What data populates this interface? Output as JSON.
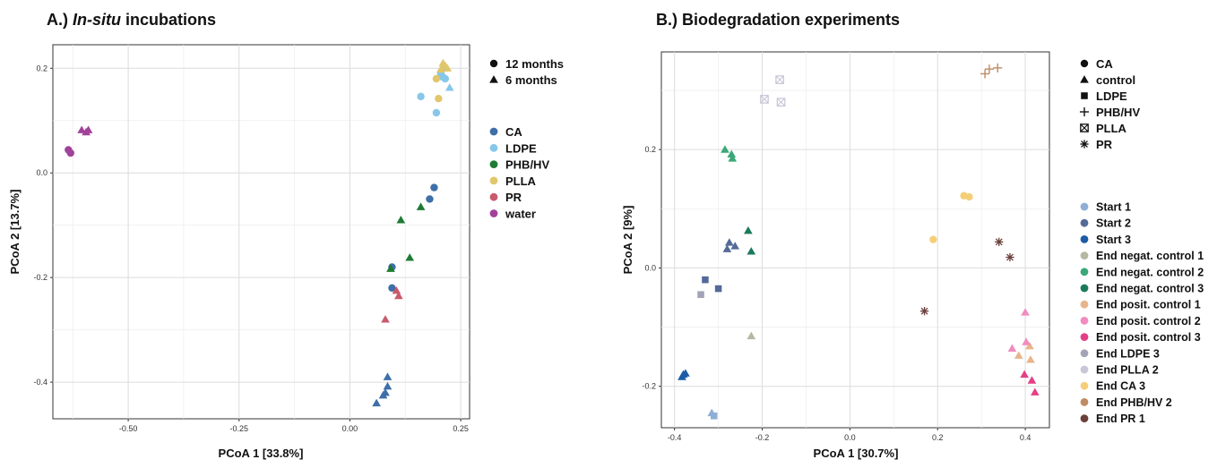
{
  "panelA": {
    "title_prefix": "A.) ",
    "title_italic": "In-situ",
    "title_suffix": " incubations",
    "xlabel": "PCoA 1   [33.8%]",
    "ylabel": "PCoA 2   [13.7%]",
    "shape_legend": [
      {
        "label": "12 months",
        "shape": "circle"
      },
      {
        "label": "6 months",
        "shape": "triangle"
      }
    ],
    "color_legend": [
      {
        "label": "CA",
        "color": "#3e6fa8"
      },
      {
        "label": "LDPE",
        "color": "#87c7ea"
      },
      {
        "label": "PHB/HV",
        "color": "#1e7a34"
      },
      {
        "label": "PLLA",
        "color": "#e1c66a"
      },
      {
        "label": "PR",
        "color": "#c95a6b"
      },
      {
        "label": "water",
        "color": "#a1429a"
      }
    ]
  },
  "panelB": {
    "title": "B.) Biodegradation experiments",
    "xlabel": "PCoA 1   [30.7%]",
    "ylabel": "PCoA 2   [9%]",
    "shape_legend": [
      {
        "label": "CA",
        "shape": "circle"
      },
      {
        "label": "control",
        "shape": "triangle"
      },
      {
        "label": "LDPE",
        "shape": "square"
      },
      {
        "label": "PHB/HV",
        "shape": "plus"
      },
      {
        "label": "PLLA",
        "shape": "boxx"
      },
      {
        "label": "PR",
        "shape": "star"
      }
    ],
    "color_legend": [
      {
        "label": "Start 1",
        "color": "#8eaed6"
      },
      {
        "label": "Start 2",
        "color": "#546a98"
      },
      {
        "label": "Start 3",
        "color": "#1c5ca6"
      },
      {
        "label": "End negat. control 1",
        "color": "#b6b8a2"
      },
      {
        "label": "End negat. control 2",
        "color": "#3aa878"
      },
      {
        "label": "End negat. control 3",
        "color": "#1b7a5c"
      },
      {
        "label": "End posit. control 1",
        "color": "#e8b48a"
      },
      {
        "label": "End posit. control 2",
        "color": "#f08cbf"
      },
      {
        "label": "End posit. control 3",
        "color": "#e43f86"
      },
      {
        "label": "End LDPE 3",
        "color": "#a3a3b8"
      },
      {
        "label": "End PLLA 2",
        "color": "#c8c7d8"
      },
      {
        "label": "End CA 3",
        "color": "#f5cf78"
      },
      {
        "label": "End PHB/HV 2",
        "color": "#bf8b63"
      },
      {
        "label": "End PR 1",
        "color": "#6b3f3a"
      }
    ]
  },
  "chart_data": [
    {
      "type": "scatter",
      "title": "A.) In-situ incubations",
      "xlabel": "PCoA 1   [33.8%]",
      "ylabel": "PCoA 2   [13.7%]",
      "xlim": [
        -0.67,
        0.27
      ],
      "ylim": [
        -0.47,
        0.245
      ],
      "xticks": [
        -0.5,
        -0.25,
        0.0,
        0.25
      ],
      "xtick_labels": [
        "-0.50",
        "-0.25",
        "0.00",
        "0.25"
      ],
      "yticks": [
        0.2,
        0.0,
        -0.2,
        -0.4
      ],
      "ytick_labels": [
        "0.2",
        "0.0",
        "-0.2",
        "-0.4"
      ],
      "grid": true,
      "legend_position": "right",
      "series": [
        {
          "name": "CA",
          "color": "#3e6fa8",
          "points": [
            {
              "x": 0.19,
              "y": -0.028,
              "shape": "circle"
            },
            {
              "x": 0.18,
              "y": -0.05,
              "shape": "circle"
            },
            {
              "x": 0.095,
              "y": -0.18,
              "shape": "circle"
            },
            {
              "x": 0.095,
              "y": -0.22,
              "shape": "circle"
            },
            {
              "x": 0.085,
              "y": -0.39,
              "shape": "triangle"
            },
            {
              "x": 0.085,
              "y": -0.408,
              "shape": "triangle"
            },
            {
              "x": 0.08,
              "y": -0.42,
              "shape": "triangle"
            },
            {
              "x": 0.075,
              "y": -0.425,
              "shape": "triangle"
            },
            {
              "x": 0.06,
              "y": -0.44,
              "shape": "triangle"
            }
          ]
        },
        {
          "name": "LDPE",
          "color": "#87c7ea",
          "points": [
            {
              "x": 0.16,
              "y": 0.146,
              "shape": "circle"
            },
            {
              "x": 0.195,
              "y": 0.115,
              "shape": "circle"
            },
            {
              "x": 0.205,
              "y": 0.19,
              "shape": "circle"
            },
            {
              "x": 0.21,
              "y": 0.183,
              "shape": "circle"
            },
            {
              "x": 0.215,
              "y": 0.18,
              "shape": "circle"
            },
            {
              "x": 0.225,
              "y": 0.163,
              "shape": "triangle"
            },
            {
              "x": 0.21,
              "y": 0.2,
              "shape": "triangle"
            }
          ]
        },
        {
          "name": "PHB/HV",
          "color": "#1e7a34",
          "points": [
            {
              "x": 0.16,
              "y": -0.065,
              "shape": "triangle"
            },
            {
              "x": 0.115,
              "y": -0.09,
              "shape": "triangle"
            },
            {
              "x": 0.135,
              "y": -0.162,
              "shape": "triangle"
            },
            {
              "x": 0.092,
              "y": -0.183,
              "shape": "triangle"
            }
          ]
        },
        {
          "name": "PLLA",
          "color": "#e1c66a",
          "points": [
            {
              "x": 0.195,
              "y": 0.18,
              "shape": "circle"
            },
            {
              "x": 0.2,
              "y": 0.142,
              "shape": "circle"
            },
            {
              "x": 0.21,
              "y": 0.21,
              "shape": "triangle"
            },
            {
              "x": 0.215,
              "y": 0.205,
              "shape": "triangle"
            },
            {
              "x": 0.22,
              "y": 0.2,
              "shape": "triangle"
            },
            {
              "x": 0.205,
              "y": 0.198,
              "shape": "triangle"
            }
          ]
        },
        {
          "name": "PR",
          "color": "#c95a6b",
          "points": [
            {
              "x": 0.105,
              "y": -0.225,
              "shape": "triangle"
            },
            {
              "x": 0.11,
              "y": -0.235,
              "shape": "triangle"
            },
            {
              "x": 0.08,
              "y": -0.28,
              "shape": "triangle"
            }
          ]
        },
        {
          "name": "water",
          "color": "#a1429a",
          "points": [
            {
              "x": -0.635,
              "y": 0.044,
              "shape": "circle"
            },
            {
              "x": -0.63,
              "y": 0.038,
              "shape": "circle"
            },
            {
              "x": -0.605,
              "y": 0.082,
              "shape": "triangle"
            },
            {
              "x": -0.595,
              "y": 0.078,
              "shape": "triangle"
            },
            {
              "x": -0.59,
              "y": 0.082,
              "shape": "triangle"
            }
          ]
        }
      ]
    },
    {
      "type": "scatter",
      "title": "B.) Biodegradation experiments",
      "xlabel": "PCoA 1   [30.7%]",
      "ylabel": "PCoA 2   [9%]",
      "xlim": [
        -0.43,
        0.455
      ],
      "ylim": [
        -0.27,
        0.365
      ],
      "xticks": [
        -0.4,
        -0.2,
        0.0,
        0.2,
        0.4
      ],
      "xtick_labels": [
        "-0.4",
        "-0.2",
        "0.0",
        "0.2",
        "0.4"
      ],
      "yticks": [
        0.2,
        0.0,
        -0.2
      ],
      "ytick_labels": [
        "0.2",
        "0.0",
        "-0.2"
      ],
      "grid": true,
      "legend_position": "right",
      "series": [
        {
          "name": "Start 1",
          "color": "#8eaed6",
          "points": [
            {
              "x": -0.315,
              "y": -0.245,
              "shape": "triangle"
            },
            {
              "x": -0.31,
              "y": -0.25,
              "shape": "square"
            }
          ]
        },
        {
          "name": "Start 2",
          "color": "#546a98",
          "points": [
            {
              "x": -0.275,
              "y": 0.043,
              "shape": "triangle"
            },
            {
              "x": -0.262,
              "y": 0.037,
              "shape": "triangle"
            },
            {
              "x": -0.28,
              "y": 0.032,
              "shape": "triangle"
            },
            {
              "x": -0.33,
              "y": -0.02,
              "shape": "square"
            },
            {
              "x": -0.3,
              "y": -0.035,
              "shape": "square"
            }
          ]
        },
        {
          "name": "Start 3",
          "color": "#1c5ca6",
          "points": [
            {
              "x": -0.38,
              "y": -0.18,
              "shape": "triangle"
            },
            {
              "x": -0.375,
              "y": -0.178,
              "shape": "triangle"
            },
            {
              "x": -0.383,
              "y": -0.184,
              "shape": "triangle"
            }
          ]
        },
        {
          "name": "End negat. control 1",
          "color": "#b6b8a2",
          "points": [
            {
              "x": -0.225,
              "y": -0.115,
              "shape": "triangle"
            }
          ]
        },
        {
          "name": "End negat. control 2",
          "color": "#3aa878",
          "points": [
            {
              "x": -0.285,
              "y": 0.2,
              "shape": "triangle"
            },
            {
              "x": -0.27,
              "y": 0.192,
              "shape": "triangle"
            },
            {
              "x": -0.268,
              "y": 0.185,
              "shape": "triangle"
            }
          ]
        },
        {
          "name": "End negat. control 3",
          "color": "#1b7a5c",
          "points": [
            {
              "x": -0.232,
              "y": 0.063,
              "shape": "triangle"
            },
            {
              "x": -0.225,
              "y": 0.028,
              "shape": "triangle"
            }
          ]
        },
        {
          "name": "End posit. control 1",
          "color": "#e8b48a",
          "points": [
            {
              "x": 0.385,
              "y": -0.148,
              "shape": "triangle"
            },
            {
              "x": 0.41,
              "y": -0.132,
              "shape": "triangle"
            },
            {
              "x": 0.412,
              "y": -0.155,
              "shape": "triangle"
            }
          ]
        },
        {
          "name": "End posit. control 2",
          "color": "#f08cbf",
          "points": [
            {
              "x": 0.4,
              "y": -0.075,
              "shape": "triangle"
            },
            {
              "x": 0.37,
              "y": -0.136,
              "shape": "triangle"
            },
            {
              "x": 0.402,
              "y": -0.125,
              "shape": "triangle"
            }
          ]
        },
        {
          "name": "End posit. control 3",
          "color": "#e43f86",
          "points": [
            {
              "x": 0.398,
              "y": -0.18,
              "shape": "triangle"
            },
            {
              "x": 0.415,
              "y": -0.19,
              "shape": "triangle"
            },
            {
              "x": 0.422,
              "y": -0.21,
              "shape": "triangle"
            }
          ]
        },
        {
          "name": "End LDPE 3",
          "color": "#a3a3b8",
          "points": [
            {
              "x": -0.34,
              "y": -0.045,
              "shape": "square"
            }
          ]
        },
        {
          "name": "End PLLA 2",
          "color": "#c8c7d8",
          "points": [
            {
              "x": -0.16,
              "y": 0.318,
              "shape": "boxx"
            },
            {
              "x": -0.195,
              "y": 0.285,
              "shape": "boxx"
            },
            {
              "x": -0.157,
              "y": 0.28,
              "shape": "boxx"
            }
          ]
        },
        {
          "name": "End CA 3",
          "color": "#f5cf78",
          "points": [
            {
              "x": 0.26,
              "y": 0.122,
              "shape": "circle"
            },
            {
              "x": 0.272,
              "y": 0.12,
              "shape": "circle"
            },
            {
              "x": 0.19,
              "y": 0.048,
              "shape": "circle"
            }
          ]
        },
        {
          "name": "End PHB/HV 2",
          "color": "#bf8b63",
          "points": [
            {
              "x": 0.308,
              "y": 0.328,
              "shape": "plus"
            },
            {
              "x": 0.318,
              "y": 0.336,
              "shape": "plus"
            },
            {
              "x": 0.337,
              "y": 0.338,
              "shape": "plus"
            }
          ]
        },
        {
          "name": "End PR 1",
          "color": "#6b3f3a",
          "points": [
            {
              "x": 0.17,
              "y": -0.073,
              "shape": "star"
            },
            {
              "x": 0.34,
              "y": 0.044,
              "shape": "star"
            },
            {
              "x": 0.365,
              "y": 0.018,
              "shape": "star"
            }
          ]
        }
      ]
    }
  ]
}
